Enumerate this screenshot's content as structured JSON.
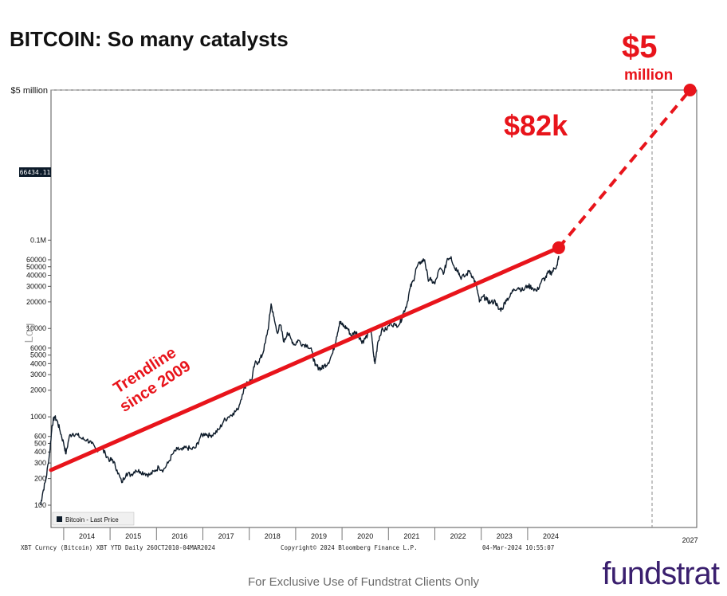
{
  "title": "BITCOIN: So many catalysts",
  "footer": "For Exclusive Use of Fundstrat Clients Only",
  "brand": "fundstrat",
  "colors": {
    "accent": "#e8141b",
    "series": "#0d1b2a",
    "brand": "#3a1f6e"
  },
  "chart_data": {
    "type": "line",
    "scale": "log",
    "ylabel": "Log",
    "xlabel": "",
    "ylim": [
      100,
      5000000
    ],
    "y_ticks": [
      100,
      200,
      300,
      400,
      500,
      600,
      1000,
      2000,
      3000,
      4000,
      5000,
      6000,
      10000,
      20000,
      30000,
      40000,
      50000,
      60000,
      100000
    ],
    "y_tick_labels": [
      "100",
      "200",
      "300",
      "400",
      "500",
      "600",
      "1000",
      "2000",
      "3000",
      "4000",
      "5000",
      "6000",
      "10000",
      "20000",
      "30000",
      "40000",
      "50000",
      "60000",
      "0.1M"
    ],
    "top_label": "$5 million",
    "last_value_label": "66434.11",
    "x_ticks": [
      2014,
      2015,
      2016,
      2017,
      2018,
      2019,
      2020,
      2021,
      2022,
      2023,
      2024,
      2027
    ],
    "x_tick_labels": [
      "2014",
      "2015",
      "2016",
      "2017",
      "2018",
      "2019",
      "2020",
      "2021",
      "2022",
      "2023",
      "2024",
      "2027"
    ],
    "legend": "Bitcoin - Last Price",
    "series": [
      {
        "name": "Bitcoin - Last Price",
        "points": [
          [
            2013.0,
            100
          ],
          [
            2013.05,
            140
          ],
          [
            2013.12,
            200
          ],
          [
            2013.2,
            400
          ],
          [
            2013.25,
            800
          ],
          [
            2013.3,
            1000
          ],
          [
            2013.36,
            900
          ],
          [
            2013.42,
            700
          ],
          [
            2013.5,
            500
          ],
          [
            2013.55,
            380
          ],
          [
            2013.62,
            600
          ],
          [
            2013.7,
            650
          ],
          [
            2013.8,
            620
          ],
          [
            2013.9,
            560
          ],
          [
            2014.0,
            550
          ],
          [
            2014.1,
            500
          ],
          [
            2014.2,
            420
          ],
          [
            2014.3,
            450
          ],
          [
            2014.4,
            380
          ],
          [
            2014.5,
            320
          ],
          [
            2014.55,
            330
          ],
          [
            2014.65,
            250
          ],
          [
            2014.75,
            180
          ],
          [
            2014.85,
            230
          ],
          [
            2014.95,
            220
          ],
          [
            2015.05,
            250
          ],
          [
            2015.15,
            240
          ],
          [
            2015.25,
            230
          ],
          [
            2015.35,
            220
          ],
          [
            2015.45,
            240
          ],
          [
            2015.55,
            270
          ],
          [
            2015.65,
            250
          ],
          [
            2015.75,
            300
          ],
          [
            2015.85,
            380
          ],
          [
            2015.95,
            430
          ],
          [
            2016.05,
            420
          ],
          [
            2016.15,
            450
          ],
          [
            2016.25,
            430
          ],
          [
            2016.35,
            450
          ],
          [
            2016.45,
            600
          ],
          [
            2016.55,
            650
          ],
          [
            2016.65,
            610
          ],
          [
            2016.75,
            650
          ],
          [
            2016.85,
            720
          ],
          [
            2016.95,
            900
          ],
          [
            2017.05,
            1000
          ],
          [
            2017.15,
            1100
          ],
          [
            2017.25,
            1200
          ],
          [
            2017.35,
            1800
          ],
          [
            2017.45,
            2500
          ],
          [
            2017.55,
            2600
          ],
          [
            2017.62,
            4000
          ],
          [
            2017.7,
            4200
          ],
          [
            2017.78,
            5000
          ],
          [
            2017.85,
            7000
          ],
          [
            2017.92,
            11000
          ],
          [
            2017.97,
            19000
          ],
          [
            2018.02,
            14000
          ],
          [
            2018.1,
            9000
          ],
          [
            2018.17,
            11000
          ],
          [
            2018.25,
            7000
          ],
          [
            2018.32,
            9000
          ],
          [
            2018.4,
            7600
          ],
          [
            2018.48,
            6500
          ],
          [
            2018.55,
            7400
          ],
          [
            2018.65,
            6600
          ],
          [
            2018.75,
            6500
          ],
          [
            2018.85,
            5500
          ],
          [
            2018.92,
            3800
          ],
          [
            2019.0,
            3600
          ],
          [
            2019.05,
            3500
          ],
          [
            2019.12,
            3800
          ],
          [
            2019.2,
            4100
          ],
          [
            2019.3,
            5300
          ],
          [
            2019.38,
            8000
          ],
          [
            2019.45,
            12000
          ],
          [
            2019.5,
            11000
          ],
          [
            2019.55,
            10500
          ],
          [
            2019.62,
            10000
          ],
          [
            2019.7,
            8200
          ],
          [
            2019.78,
            9200
          ],
          [
            2019.85,
            8500
          ],
          [
            2019.92,
            7200
          ],
          [
            2019.97,
            7300
          ],
          [
            2020.05,
            8500
          ],
          [
            2020.12,
            10000
          ],
          [
            2020.18,
            5000
          ],
          [
            2020.21,
            4000
          ],
          [
            2020.27,
            7000
          ],
          [
            2020.35,
            9500
          ],
          [
            2020.45,
            9700
          ],
          [
            2020.55,
            11500
          ],
          [
            2020.65,
            10800
          ],
          [
            2020.75,
            11500
          ],
          [
            2020.82,
            15000
          ],
          [
            2020.9,
            19000
          ],
          [
            2020.97,
            29000
          ],
          [
            2021.04,
            35000
          ],
          [
            2021.1,
            48000
          ],
          [
            2021.2,
            57000
          ],
          [
            2021.28,
            60000
          ],
          [
            2021.35,
            37000
          ],
          [
            2021.42,
            35000
          ],
          [
            2021.5,
            32000
          ],
          [
            2021.6,
            47000
          ],
          [
            2021.7,
            43000
          ],
          [
            2021.77,
            62000
          ],
          [
            2021.85,
            65000
          ],
          [
            2021.92,
            49000
          ],
          [
            2022.0,
            46000
          ],
          [
            2022.05,
            38000
          ],
          [
            2022.15,
            39000
          ],
          [
            2022.25,
            45000
          ],
          [
            2022.33,
            37000
          ],
          [
            2022.4,
            30000
          ],
          [
            2022.46,
            20000
          ],
          [
            2022.55,
            23000
          ],
          [
            2022.62,
            21000
          ],
          [
            2022.7,
            19500
          ],
          [
            2022.8,
            20500
          ],
          [
            2022.87,
            16500
          ],
          [
            2022.95,
            16600
          ],
          [
            2023.03,
            21000
          ],
          [
            2023.12,
            23000
          ],
          [
            2023.2,
            28000
          ],
          [
            2023.3,
            29000
          ],
          [
            2023.4,
            27000
          ],
          [
            2023.5,
            30500
          ],
          [
            2023.6,
            29000
          ],
          [
            2023.7,
            26500
          ],
          [
            2023.8,
            34500
          ],
          [
            2023.88,
            37000
          ],
          [
            2023.95,
            43000
          ],
          [
            2024.02,
            43000
          ],
          [
            2024.08,
            48000
          ],
          [
            2024.14,
            52000
          ],
          [
            2024.17,
            66434
          ]
        ]
      }
    ],
    "trendline": {
      "label_line1": "Trendline",
      "label_line2": "since 2009",
      "start": [
        2013.0,
        250
      ],
      "end": [
        2024.17,
        82000
      ]
    },
    "projection": {
      "start": [
        2024.17,
        82000
      ],
      "end": [
        2027.0,
        5000000
      ]
    },
    "annotations": [
      {
        "text": "$82k"
      },
      {
        "text_line1": "$5",
        "text_line2": "million"
      }
    ],
    "footer_left": "XBT Curncy (Bitcoin) XBT YTD  Daily 26OCT2010-04MAR2024",
    "footer_center": "Copyright© 2024 Bloomberg Finance L.P.",
    "footer_right": "04-Mar-2024 10:55:07"
  }
}
